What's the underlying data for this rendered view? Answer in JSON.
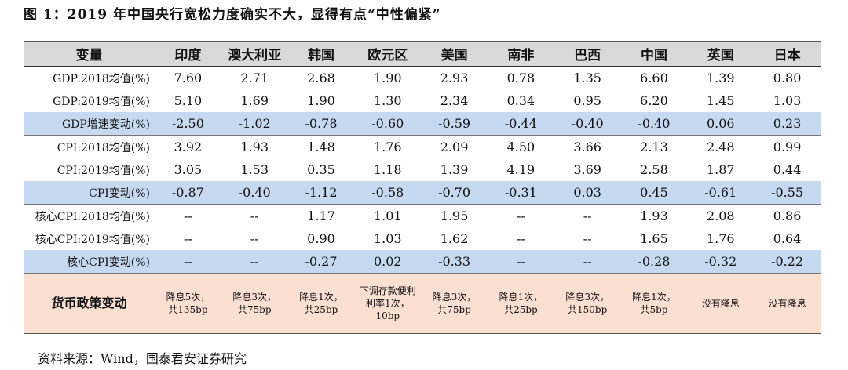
{
  "title": "图 1：2019 年中国央行宽松力度确实不大，显得有点“中性偏紧”",
  "table": {
    "header": [
      "变量",
      "印度",
      "澳大利亚",
      "韩国",
      "欧元区",
      "美国",
      "南非",
      "巴西",
      "中国",
      "英国",
      "日本"
    ],
    "rows": [
      {
        "label": "GDP:2018均值(%)",
        "cells": [
          "7.60",
          "2.71",
          "2.68",
          "1.90",
          "2.93",
          "0.78",
          "1.35",
          "6.60",
          "1.39",
          "0.80"
        ]
      },
      {
        "label": "GDP:2019均值(%)",
        "cells": [
          "5.10",
          "1.69",
          "1.90",
          "1.30",
          "2.34",
          "0.34",
          "0.95",
          "6.20",
          "1.45",
          "1.03"
        ]
      },
      {
        "label": "GDP增速变动(%)",
        "highlight": true,
        "cells": [
          "-2.50",
          "-1.02",
          "-0.78",
          "-0.60",
          "-0.59",
          "-0.44",
          "-0.40",
          "-0.40",
          "0.06",
          "0.23"
        ]
      },
      {
        "label": "CPI:2018均值(%)",
        "cells": [
          "3.92",
          "1.93",
          "1.48",
          "1.76",
          "2.09",
          "4.50",
          "3.66",
          "2.13",
          "2.48",
          "0.99"
        ]
      },
      {
        "label": "CPI:2019均值(%)",
        "cells": [
          "3.05",
          "1.53",
          "0.35",
          "1.18",
          "1.39",
          "4.19",
          "3.69",
          "2.58",
          "1.87",
          "0.44"
        ]
      },
      {
        "label": "CPI变动(%)",
        "highlight": true,
        "cells": [
          "-0.87",
          "-0.40",
          "-1.12",
          "-0.58",
          "-0.70",
          "-0.31",
          "0.03",
          "0.45",
          "-0.61",
          "-0.55"
        ]
      },
      {
        "label": "核心CPI:2018均值(%)",
        "cells": [
          "--",
          "--",
          "1.17",
          "1.01",
          "1.95",
          "--",
          "--",
          "1.93",
          "2.08",
          "0.86"
        ]
      },
      {
        "label": "核心CPI:2019均值(%)",
        "cells": [
          "--",
          "--",
          "0.90",
          "1.03",
          "1.62",
          "--",
          "--",
          "1.65",
          "1.76",
          "0.64"
        ]
      },
      {
        "label": "核心CPI变动(%)",
        "highlight": true,
        "cells": [
          "--",
          "--",
          "-0.27",
          "0.02",
          "-0.33",
          "--",
          "--",
          "-0.28",
          "-0.32",
          "-0.22"
        ]
      }
    ],
    "policy": {
      "label": "货币政策变动",
      "cells": [
        [
          "降息5次，",
          "共135bp"
        ],
        [
          "降息3次，",
          "共75bp"
        ],
        [
          "降息1次，",
          "共25bp"
        ],
        [
          "下调存款便利",
          "利率1次，",
          "10bp"
        ],
        [
          "降息3次，",
          "共75bp"
        ],
        [
          "降息1次，",
          "共25bp"
        ],
        [
          "降息3次，",
          "共150bp"
        ],
        [
          "降息1次，",
          "共5bp"
        ],
        [
          "没有降息"
        ],
        [
          "没有降息"
        ]
      ]
    }
  },
  "source": "资料来源：Wind，国泰君安证券研究"
}
